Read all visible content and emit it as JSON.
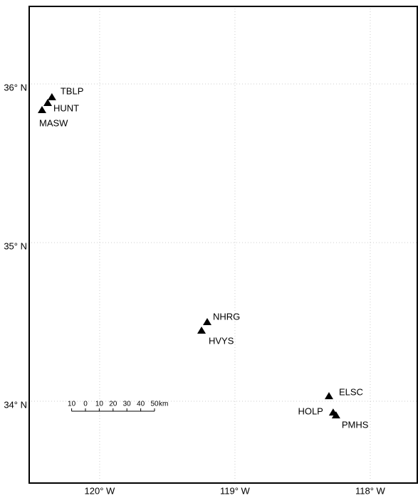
{
  "chart_data": {
    "type": "scatter",
    "xlim": [
      -120.526,
      -117.647
    ],
    "ylim": [
      33.48,
      36.493
    ],
    "xticks": [
      {
        "value": -120,
        "label": "120° W"
      },
      {
        "value": -119,
        "label": "119° W"
      },
      {
        "value": -118,
        "label": "118° W"
      }
    ],
    "yticks": [
      {
        "value": 34,
        "label": "34° N"
      },
      {
        "value": 35,
        "label": "35° N"
      },
      {
        "value": 36,
        "label": "36° N"
      }
    ],
    "grid": true,
    "points": [
      {
        "name": "TBLP",
        "lon": -120.353,
        "lat": 35.915
      },
      {
        "name": "HUNT",
        "lon": -120.384,
        "lat": 35.879
      },
      {
        "name": "MASW",
        "lon": -120.426,
        "lat": 35.834
      },
      {
        "name": "NHRG",
        "lon": -119.205,
        "lat": 34.498
      },
      {
        "name": "HVYS",
        "lon": -119.247,
        "lat": 34.444
      },
      {
        "name": "ELSC",
        "lon": -118.305,
        "lat": 34.031
      },
      {
        "name": "HOLP",
        "lon": -118.274,
        "lat": 33.928
      },
      {
        "name": "PMHS",
        "lon": -118.253,
        "lat": 33.91
      }
    ],
    "scale_bar": {
      "ticks": [
        {
          "value": -10,
          "label": "10"
        },
        0,
        10,
        20,
        30,
        40,
        50
      ],
      "unit": "km"
    }
  }
}
